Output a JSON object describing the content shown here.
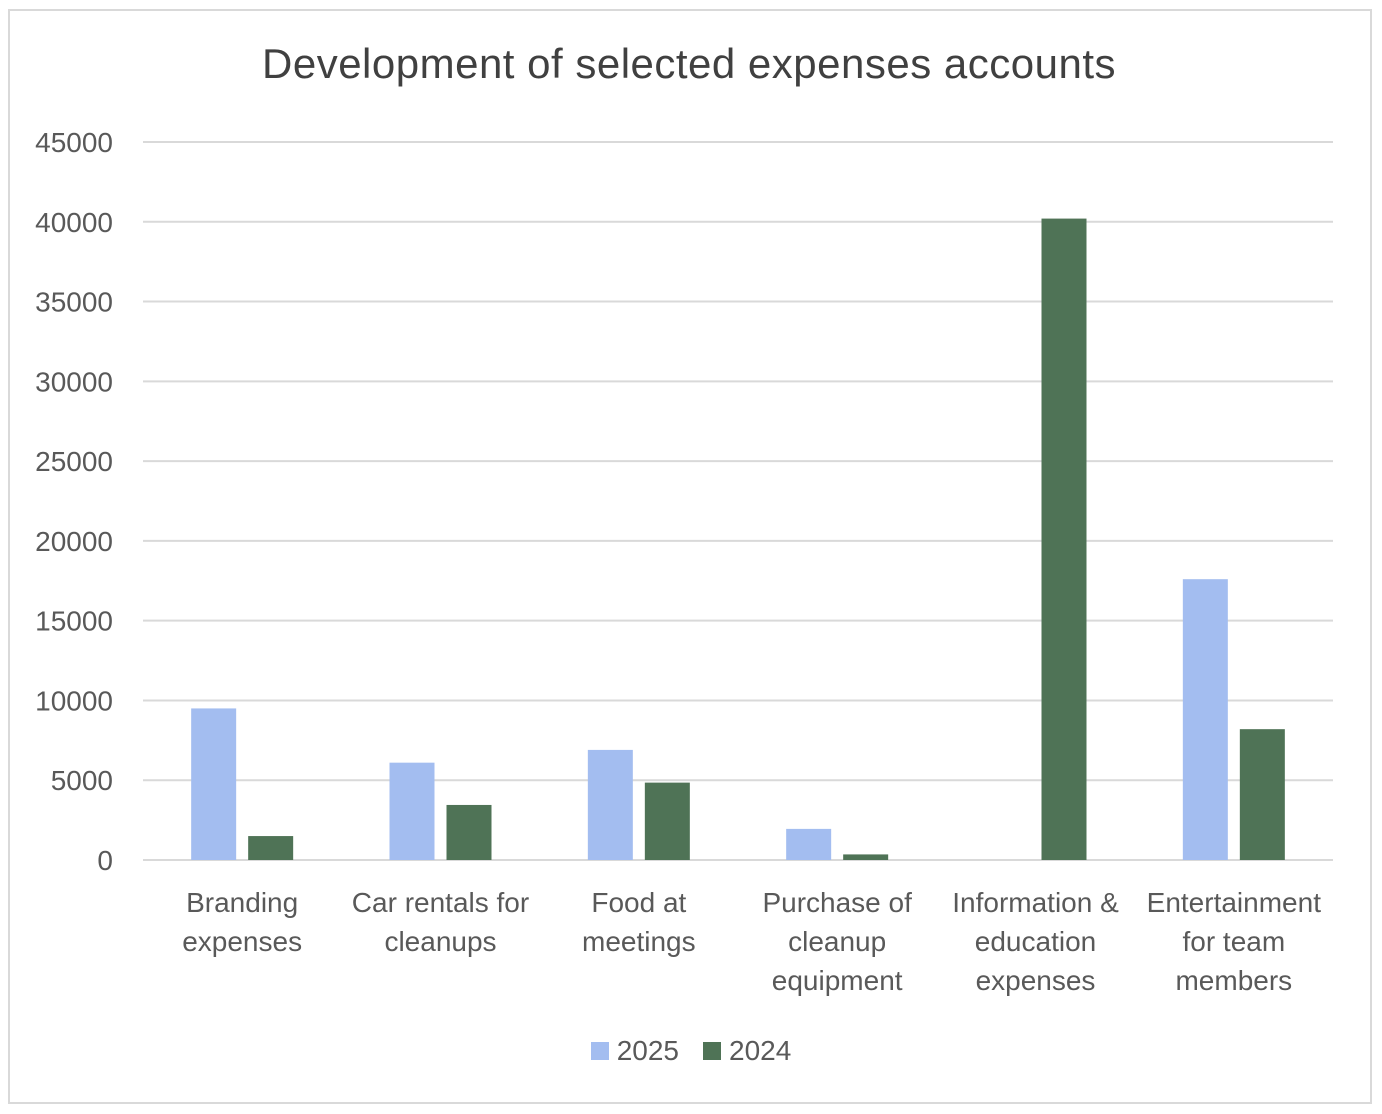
{
  "chart_data": {
    "type": "bar",
    "title": "Development of selected expenses accounts",
    "categories": [
      [
        "Branding",
        "expenses"
      ],
      [
        "Car rentals for",
        "cleanups"
      ],
      [
        "Food at",
        "meetings"
      ],
      [
        "Purchase of",
        "cleanup",
        "equipment"
      ],
      [
        "Information &",
        "education",
        "expenses"
      ],
      [
        "Entertainment",
        "for team",
        "members"
      ]
    ],
    "series": [
      {
        "name": "2025",
        "color": "#a3bdf0",
        "values": [
          9500,
          6100,
          6900,
          1950,
          0,
          17600
        ]
      },
      {
        "name": "2024",
        "color": "#4f7356",
        "values": [
          1500,
          3450,
          4850,
          350,
          40200,
          8200
        ]
      }
    ],
    "xlabel": "",
    "ylabel": "",
    "ylim": [
      0,
      45000
    ],
    "yticks": [
      "0",
      "5000",
      "10000",
      "15000",
      "20000",
      "25000",
      "30000",
      "35000",
      "40000",
      "45000"
    ],
    "grid": true,
    "legend_position": "bottom"
  }
}
